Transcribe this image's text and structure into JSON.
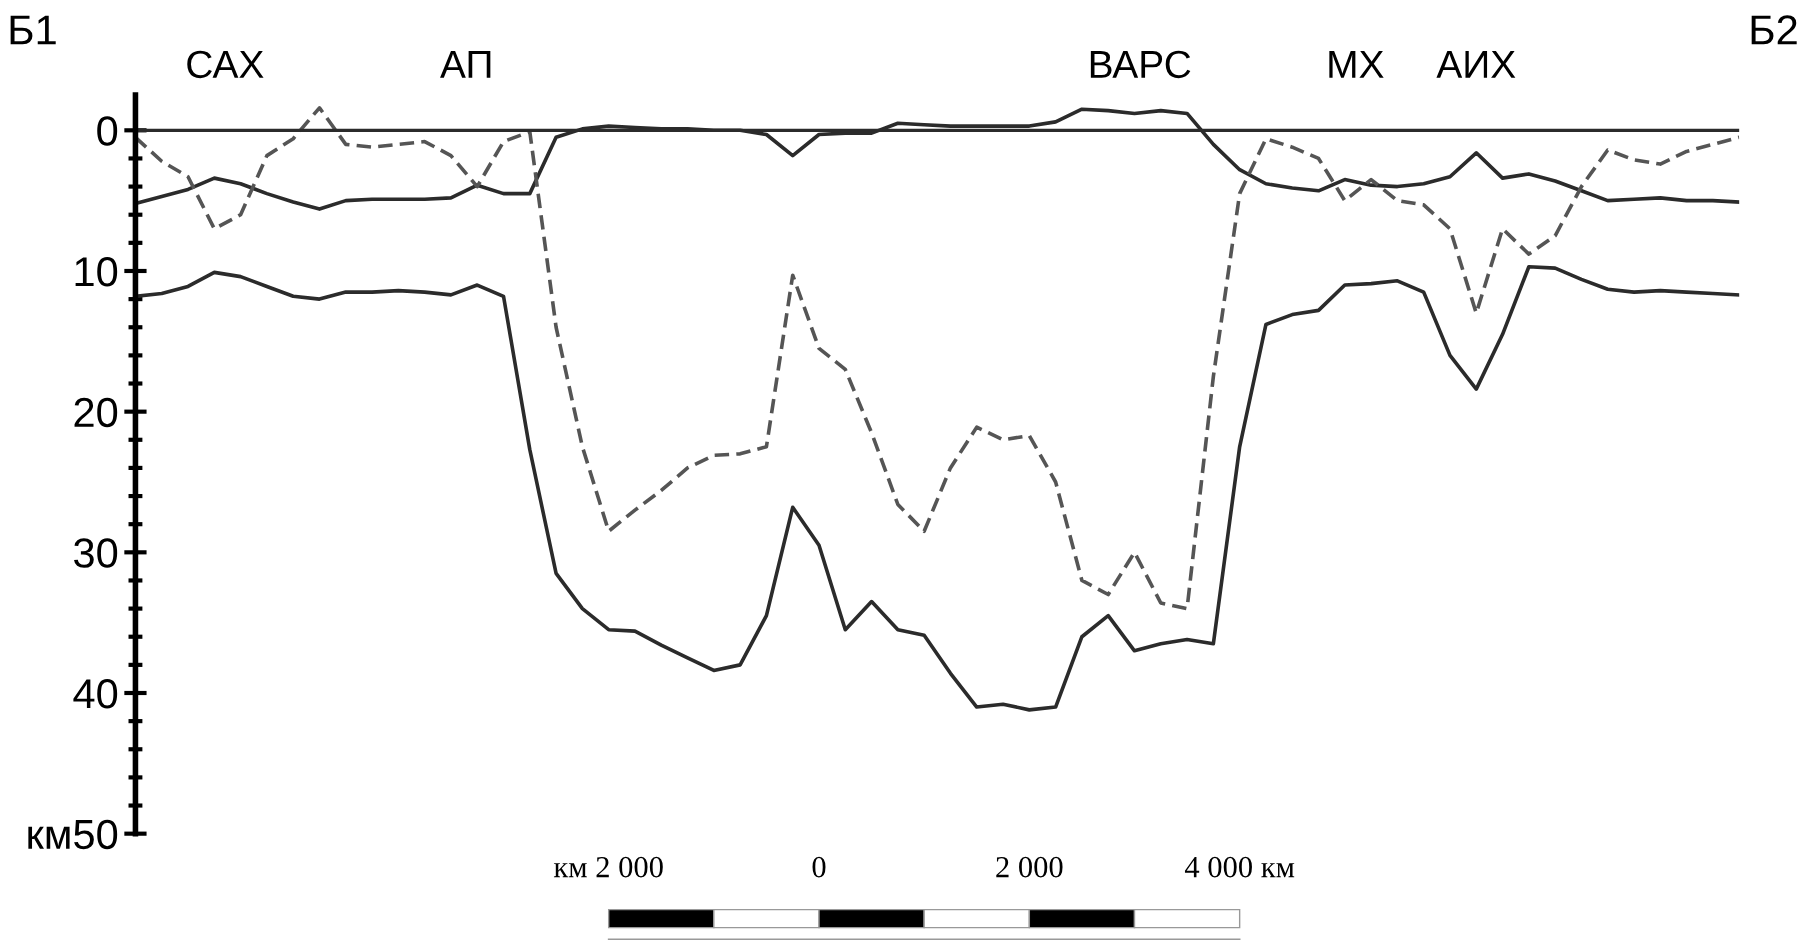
{
  "chart_data": {
    "type": "line",
    "x": [
      -6500,
      -6250,
      -6000,
      -5750,
      -5500,
      -5250,
      -5000,
      -4750,
      -4500,
      -4250,
      -4000,
      -3750,
      -3500,
      -3250,
      -3000,
      -2750,
      -2500,
      -2250,
      -2000,
      -1750,
      -1500,
      -1250,
      -1000,
      -750,
      -500,
      -250,
      0,
      250,
      500,
      750,
      1000,
      1250,
      1500,
      1750,
      2000,
      2250,
      2500,
      2750,
      3000,
      3250,
      3500,
      3750,
      4000,
      4250,
      4500,
      4750,
      5000,
      5250,
      5500,
      5750,
      6000,
      6250,
      6500,
      6750,
      7000,
      7250,
      7500,
      7750,
      8000,
      8250,
      8500,
      8750
    ],
    "series": [
      {
        "color": "#2b2b2b",
        "line_style": "solid",
        "values": [
          5.2,
          4.7,
          4.2,
          3.4,
          3.8,
          4.5,
          5.1,
          5.6,
          5.0,
          4.9,
          4.9,
          4.9,
          4.8,
          3.9,
          4.5,
          4.5,
          0.5,
          -0.1,
          -0.3,
          -0.2,
          -0.1,
          -0.1,
          0,
          0,
          0.3,
          1.8,
          0.3,
          0.2,
          0.2,
          -0.5,
          -0.4,
          -0.3,
          -0.3,
          -0.3,
          -0.3,
          -0.6,
          -1.5,
          -1.4,
          -1.2,
          -1.4,
          -1.2,
          1.0,
          2.8,
          3.8,
          4.1,
          4.3,
          3.5,
          3.9,
          4.0,
          3.8,
          3.3,
          1.6,
          3.4,
          3.1,
          3.6,
          4.3,
          5.0,
          4.9,
          4.8,
          5.0,
          5.0,
          5.1
        ]
      },
      {
        "color": "#555555",
        "line_style": "dashed",
        "values": [
          0.5,
          2.2,
          3.3,
          7.0,
          6.0,
          1.8,
          0.6,
          -1.6,
          1.0,
          1.2,
          1.0,
          0.8,
          1.8,
          4.0,
          0.8,
          0.1,
          14.0,
          22.5,
          28.5,
          27.0,
          25.6,
          24.0,
          23.1,
          23.0,
          22.5,
          10.3,
          15.5,
          17.0,
          21.5,
          26.6,
          28.5,
          24.0,
          21.1,
          22.0,
          21.7,
          25.0,
          32.0,
          33.0,
          30.0,
          33.6,
          34.0,
          17.5,
          4.5,
          0.6,
          1.2,
          2.0,
          5.0,
          3.5,
          5.0,
          5.3,
          7.0,
          13.0,
          7.0,
          8.8,
          7.5,
          4.0,
          1.4,
          2.1,
          2.4,
          1.5,
          1.0,
          0.5
        ]
      },
      {
        "color": "#2b2b2b",
        "line_style": "solid",
        "values": [
          11.8,
          11.6,
          11.1,
          10.1,
          10.4,
          11.1,
          11.8,
          12.0,
          11.5,
          11.5,
          11.4,
          11.5,
          11.7,
          11.0,
          11.8,
          22.7,
          31.5,
          34.0,
          35.5,
          35.6,
          36.6,
          37.5,
          38.4,
          38.0,
          34.5,
          26.8,
          29.5,
          35.5,
          33.5,
          35.5,
          35.9,
          38.6,
          41.0,
          40.8,
          41.2,
          41.0,
          36.0,
          34.5,
          37.0,
          36.5,
          36.2,
          36.5,
          22.5,
          13.8,
          13.1,
          12.8,
          11.0,
          10.9,
          10.7,
          11.5,
          16.0,
          18.4,
          14.5,
          9.7,
          9.8,
          10.6,
          11.3,
          11.5,
          11.4,
          11.5,
          11.6,
          11.7
        ]
      }
    ],
    "xlim": [
      -6500,
      8750
    ],
    "ylim": [
      50,
      -2.5
    ],
    "xticks": [
      {
        "value": -2000,
        "label": "км 2 000"
      },
      0,
      {
        "value": 2000,
        "label": "2 000"
      },
      {
        "value": 4000,
        "label": "4 000 км"
      }
    ],
    "yticks": [
      0,
      {
        "value": 2,
        "label": null
      },
      {
        "value": 4,
        "label": null
      },
      {
        "value": 6,
        "label": null
      },
      {
        "value": 8,
        "label": null
      },
      10,
      {
        "value": 12,
        "label": null
      },
      {
        "value": 14,
        "label": null
      },
      {
        "value": 16,
        "label": null
      },
      {
        "value": 18,
        "label": null
      },
      20,
      {
        "value": 22,
        "label": null
      },
      {
        "value": 24,
        "label": null
      },
      {
        "value": 26,
        "label": null
      },
      {
        "value": 28,
        "label": null
      },
      30,
      {
        "value": 32,
        "label": null
      },
      {
        "value": 34,
        "label": null
      },
      {
        "value": 36,
        "label": null
      },
      {
        "value": 38,
        "label": null
      },
      40,
      {
        "value": 42,
        "label": null
      },
      {
        "value": 44,
        "label": null
      },
      {
        "value": 46,
        "label": null
      },
      {
        "value": 48,
        "label": null
      },
      {
        "value": 50,
        "label": "км50"
      }
    ],
    "ref_lines": [
      {
        "axis": "y",
        "value": 0,
        "color": "#2b2b2b"
      }
    ],
    "annotations": [
      "Б1",
      {
        "text": "САХ",
        "x": -5650,
        "y": 0
      },
      {
        "text": "АП",
        "x": -3350,
        "y": 0
      },
      {
        "text": "ВАРС",
        "x": 3050,
        "y": 0
      },
      {
        "text": "МХ",
        "x": 5100,
        "y": 0
      },
      {
        "text": "АИХ",
        "x": 6250,
        "y": 0
      },
      "Б2"
    ],
    "grid": false,
    "legend": false,
    "marker": "none"
  }
}
